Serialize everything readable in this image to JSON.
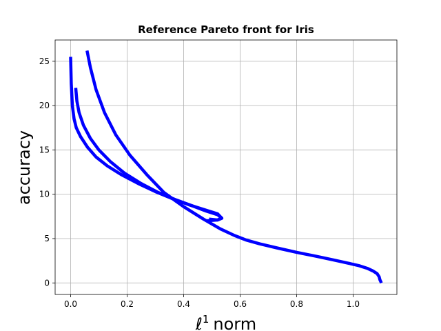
{
  "chart_data": {
    "type": "line",
    "title": "Reference Pareto front for Iris",
    "xlabel": "norm",
    "xlabel_symbol": "ℓ",
    "xlabel_superscript": "1",
    "ylabel": "accuracy",
    "xlim": [
      -0.055,
      1.155
    ],
    "ylim": [
      -1.3,
      27.4
    ],
    "xticks": [
      0.0,
      0.2,
      0.4,
      0.6,
      0.8,
      1.0
    ],
    "xtick_labels": [
      "0.0",
      "0.2",
      "0.4",
      "0.6",
      "0.8",
      "1.0"
    ],
    "yticks": [
      0,
      5,
      10,
      15,
      20,
      25
    ],
    "ytick_labels": [
      "0",
      "5",
      "10",
      "15",
      "20",
      "25"
    ],
    "grid": true,
    "line_color": "#0000ff",
    "series": [
      {
        "x": [
          0.0,
          0.002,
          0.006,
          0.012,
          0.02,
          0.035,
          0.06,
          0.09,
          0.13,
          0.18,
          0.24,
          0.3,
          0.36,
          0.42,
          0.48,
          0.52,
          0.535,
          0.52,
          0.49
        ],
        "y": [
          25.5,
          22.5,
          20.0,
          18.5,
          17.5,
          16.5,
          15.3,
          14.2,
          13.2,
          12.2,
          11.2,
          10.3,
          9.5,
          8.8,
          8.2,
          7.8,
          7.3,
          7.1,
          7.2
        ]
      },
      {
        "x": [
          0.018,
          0.022,
          0.03,
          0.045,
          0.07,
          0.1,
          0.14,
          0.19,
          0.25,
          0.31,
          0.37,
          0.43,
          0.48,
          0.52,
          0.535,
          0.52,
          0.48
        ],
        "y": [
          22.0,
          20.5,
          19.2,
          17.8,
          16.3,
          15.0,
          13.7,
          12.4,
          11.2,
          10.2,
          9.4,
          8.7,
          8.1,
          7.7,
          7.3,
          7.1,
          7.0
        ]
      },
      {
        "x": [
          0.058,
          0.07,
          0.09,
          0.12,
          0.16,
          0.21,
          0.27,
          0.33,
          0.4,
          0.47,
          0.53,
          0.58,
          0.62,
          0.67,
          0.73,
          0.8,
          0.87,
          0.93,
          0.98,
          1.02,
          1.05,
          1.07,
          1.085,
          1.092,
          1.095,
          1.1
        ],
        "y": [
          26.2,
          24.3,
          21.8,
          19.2,
          16.7,
          14.4,
          12.2,
          10.2,
          8.6,
          7.2,
          6.1,
          5.35,
          4.85,
          4.4,
          3.95,
          3.45,
          3.0,
          2.6,
          2.25,
          1.95,
          1.65,
          1.35,
          1.05,
          0.7,
          0.35,
          0.0
        ]
      }
    ]
  }
}
